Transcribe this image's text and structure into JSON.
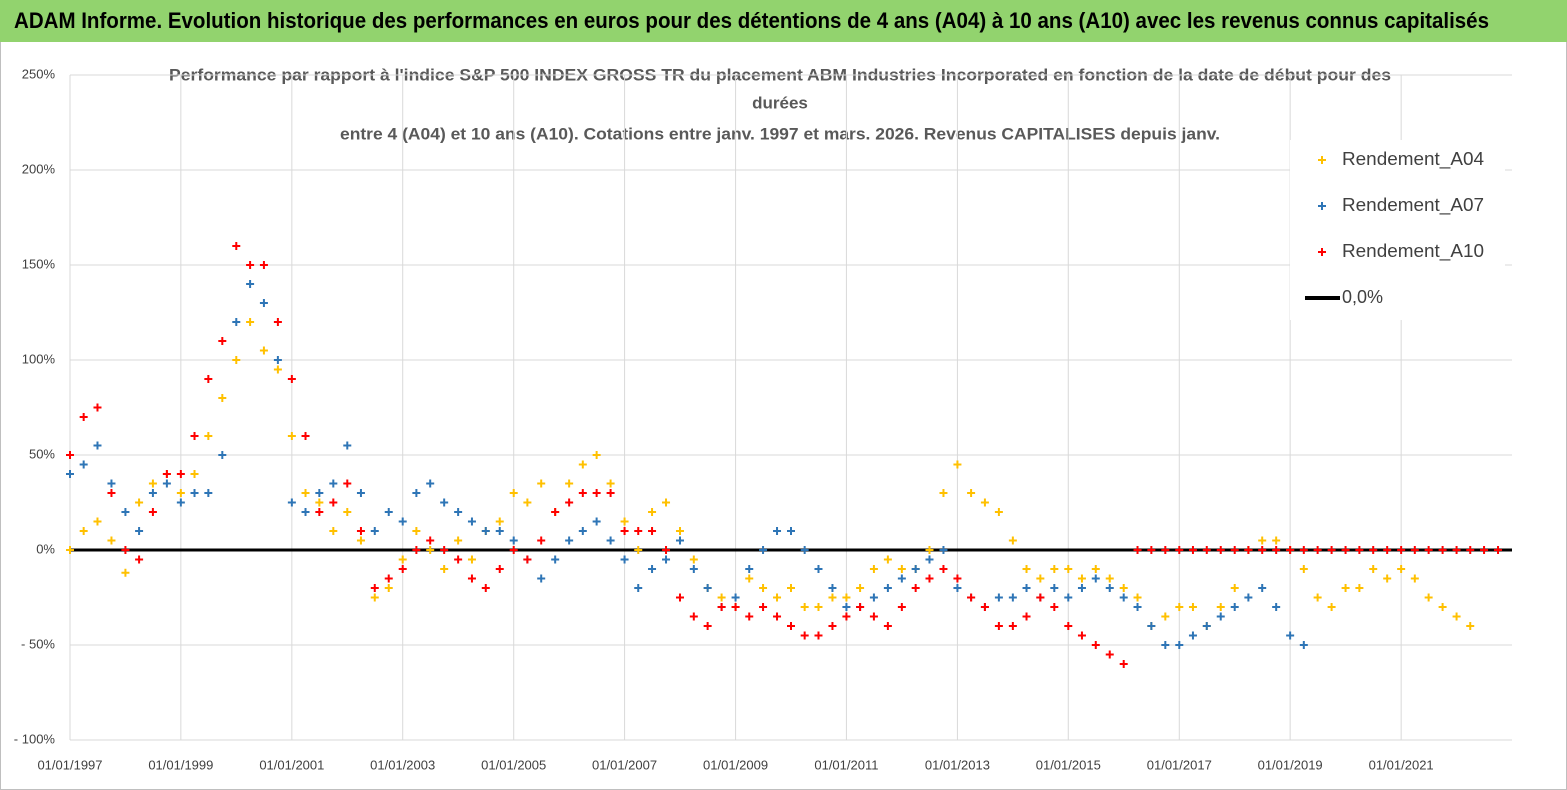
{
  "chart_data": {
    "type": "scatter",
    "header": "ADAM Informe. Evolution historique des performances en euros pour des détentions de 4 ans (A04) à 10 ans (A10) avec les revenus connus capitalisés",
    "title_lines": [
      "Performance par rapport à l'indice S&P 500 INDEX GROSS TR  du placement ABM Industries Incorporated en fonction de la date de début pour des",
      "durées",
      "entre 4 (A04) et 10 ans (A10). Cotations entre janv. 1997 et mars. 2026. Revenus CAPITALISES depuis janv."
    ],
    "xlim": [
      "1997-01-01",
      "2023-01-01"
    ],
    "xticks": [
      {
        "value": "1997-01-01",
        "label": "01/01/1997"
      },
      {
        "value": "1999-01-01",
        "label": "01/01/1999"
      },
      {
        "value": "2001-01-01",
        "label": "01/01/2001"
      },
      {
        "value": "2003-01-01",
        "label": "01/01/2003"
      },
      {
        "value": "2005-01-01",
        "label": "01/01/2005"
      },
      {
        "value": "2007-01-01",
        "label": "01/01/2007"
      },
      {
        "value": "2009-01-01",
        "label": "01/01/2009"
      },
      {
        "value": "2011-01-01",
        "label": "01/01/2011"
      },
      {
        "value": "2013-01-01",
        "label": "01/01/2013"
      },
      {
        "value": "2015-01-01",
        "label": "01/01/2015"
      },
      {
        "value": "2017-01-01",
        "label": "01/01/2017"
      },
      {
        "value": "2019-01-01",
        "label": "01/01/2019"
      },
      {
        "value": "2021-01-01",
        "label": "01/01/2021"
      }
    ],
    "ylim": [
      -100,
      250
    ],
    "yticks": [
      {
        "value": -100,
        "label": "- 100%"
      },
      {
        "value": -50,
        "label": "- 50%"
      },
      {
        "value": 0,
        "label": "0%"
      },
      {
        "value": 50,
        "label": "50%"
      },
      {
        "value": 100,
        "label": "100%"
      },
      {
        "value": 150,
        "label": "150%"
      },
      {
        "value": 200,
        "label": "200%"
      },
      {
        "value": 250,
        "label": "250%"
      }
    ],
    "grid": true,
    "x": [
      "1997-01-01",
      "1997-04-01",
      "1997-07-01",
      "1997-10-01",
      "1998-01-01",
      "1998-04-01",
      "1998-07-01",
      "1998-10-01",
      "1999-01-01",
      "1999-04-01",
      "1999-07-01",
      "1999-10-01",
      "2000-01-01",
      "2000-04-01",
      "2000-07-01",
      "2000-10-01",
      "2001-01-01",
      "2001-04-01",
      "2001-07-01",
      "2001-10-01",
      "2002-01-01",
      "2002-04-01",
      "2002-07-01",
      "2002-10-01",
      "2003-01-01",
      "2003-04-01",
      "2003-07-01",
      "2003-10-01",
      "2004-01-01",
      "2004-04-01",
      "2004-07-01",
      "2004-10-01",
      "2005-01-01",
      "2005-04-01",
      "2005-07-01",
      "2005-10-01",
      "2006-01-01",
      "2006-04-01",
      "2006-07-01",
      "2006-10-01",
      "2007-01-01",
      "2007-04-01",
      "2007-07-01",
      "2007-10-01",
      "2008-01-01",
      "2008-04-01",
      "2008-07-01",
      "2008-10-01",
      "2009-01-01",
      "2009-04-01",
      "2009-07-01",
      "2009-10-01",
      "2010-01-01",
      "2010-04-01",
      "2010-07-01",
      "2010-10-01",
      "2011-01-01",
      "2011-04-01",
      "2011-07-01",
      "2011-10-01",
      "2012-01-01",
      "2012-04-01",
      "2012-07-01",
      "2012-10-01",
      "2013-01-01",
      "2013-04-01",
      "2013-07-01",
      "2013-10-01",
      "2014-01-01",
      "2014-04-01",
      "2014-07-01",
      "2014-10-01",
      "2015-01-01",
      "2015-04-01",
      "2015-07-01",
      "2015-10-01",
      "2016-01-01",
      "2016-04-01",
      "2016-07-01",
      "2016-10-01",
      "2017-01-01",
      "2017-04-01",
      "2017-07-01",
      "2017-10-01",
      "2018-01-01",
      "2018-04-01",
      "2018-07-01",
      "2018-10-01",
      "2019-01-01",
      "2019-04-01",
      "2019-07-01",
      "2019-10-01",
      "2020-01-01",
      "2020-04-01",
      "2020-07-01",
      "2020-10-01",
      "2021-01-01",
      "2021-04-01",
      "2021-07-01",
      "2021-10-01",
      "2022-01-01",
      "2022-04-01",
      "2022-07-01",
      "2022-10-01"
    ],
    "series": [
      {
        "name": "Rendement_A04",
        "color": "#ffc000",
        "values": [
          0,
          10,
          15,
          5,
          -12,
          25,
          35,
          40,
          30,
          40,
          60,
          80,
          100,
          120,
          105,
          95,
          60,
          30,
          25,
          10,
          20,
          5,
          -25,
          -20,
          -5,
          10,
          0,
          -10,
          5,
          -5,
          10,
          15,
          30,
          25,
          35,
          20,
          35,
          45,
          50,
          35,
          15,
          0,
          20,
          25,
          10,
          -5,
          -20,
          -25,
          -30,
          -15,
          -20,
          -25,
          -20,
          -30,
          -30,
          -25,
          -25,
          -20,
          -10,
          -5,
          -10,
          -10,
          0,
          30,
          45,
          30,
          25,
          20,
          5,
          -10,
          -15,
          -10,
          -10,
          -15,
          -10,
          -15,
          -20,
          -25,
          -40,
          -35,
          -30,
          -30,
          -40,
          -30,
          -20,
          0,
          5,
          5,
          0,
          -10,
          -25,
          -30,
          -20,
          -20,
          -10,
          -15,
          -10,
          -15,
          -25,
          -30,
          -35,
          -40,
          null,
          null
        ]
      },
      {
        "name": "Rendement_A07",
        "color": "#2e75b6",
        "values": [
          40,
          45,
          55,
          35,
          20,
          10,
          30,
          35,
          25,
          30,
          30,
          50,
          120,
          140,
          130,
          100,
          25,
          20,
          30,
          35,
          55,
          30,
          10,
          20,
          15,
          30,
          35,
          25,
          20,
          15,
          10,
          10,
          5,
          -5,
          -15,
          -5,
          5,
          10,
          15,
          5,
          -5,
          -20,
          -10,
          -5,
          5,
          -10,
          -20,
          -30,
          -25,
          -10,
          0,
          10,
          10,
          0,
          -10,
          -20,
          -30,
          -30,
          -25,
          -20,
          -15,
          -10,
          -5,
          0,
          -20,
          -25,
          -30,
          -25,
          -25,
          -20,
          -25,
          -20,
          -25,
          -20,
          -15,
          -20,
          -25,
          -30,
          -40,
          -50,
          -50,
          -45,
          -40,
          -35,
          -30,
          -25,
          -20,
          -30,
          -45,
          -50,
          null,
          null,
          null,
          null,
          null,
          null,
          null,
          null,
          null,
          null,
          null,
          null,
          null,
          null
        ]
      },
      {
        "name": "Rendement_A10",
        "color": "#ff0000",
        "values": [
          50,
          70,
          75,
          30,
          0,
          -5,
          20,
          40,
          40,
          60,
          90,
          110,
          160,
          150,
          150,
          120,
          90,
          60,
          20,
          25,
          35,
          10,
          -20,
          -15,
          -10,
          0,
          5,
          0,
          -5,
          -15,
          -20,
          -10,
          0,
          -5,
          5,
          20,
          25,
          30,
          30,
          30,
          10,
          10,
          10,
          0,
          -25,
          -35,
          -40,
          -30,
          -30,
          -35,
          -30,
          -35,
          -40,
          -45,
          -45,
          -40,
          -35,
          -30,
          -35,
          -40,
          -30,
          -20,
          -15,
          -10,
          -15,
          -25,
          -30,
          -40,
          -40,
          -35,
          -25,
          -30,
          -40,
          -45,
          -50,
          -55,
          -60,
          0,
          0,
          0,
          0,
          0,
          0,
          0,
          0,
          0,
          0,
          0,
          0,
          0,
          0,
          0,
          0,
          0,
          0,
          0,
          0,
          0,
          0,
          0,
          0,
          0,
          0,
          0
        ]
      }
    ],
    "reference_line": {
      "name": "0,0%",
      "value": 0,
      "color": "#000000"
    },
    "legend": "right"
  }
}
